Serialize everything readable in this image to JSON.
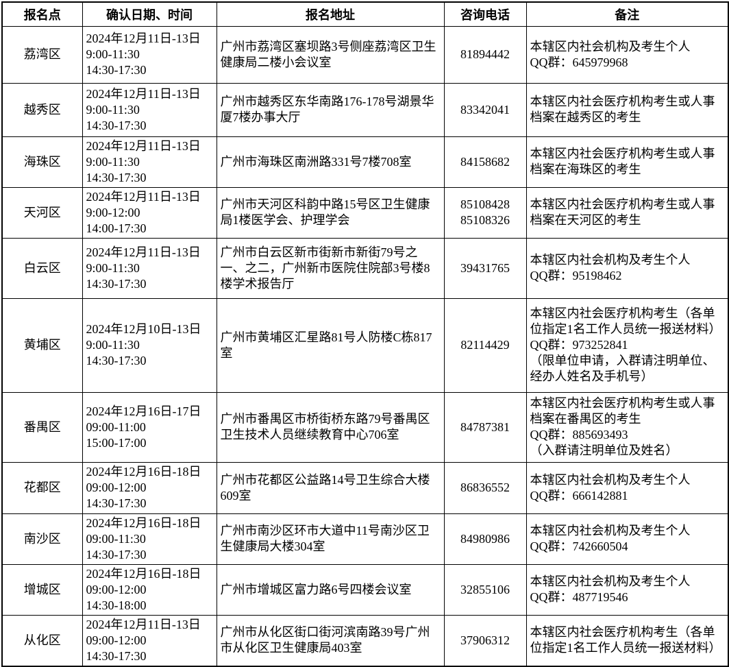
{
  "colors": {
    "background": "#ffffff",
    "text": "#000000",
    "border": "#000000"
  },
  "table": {
    "headers": [
      "报名点",
      "确认日期、时间",
      "报名地址",
      "咨询电话",
      "备注"
    ],
    "rows": [
      {
        "district": "荔湾区",
        "datetime": [
          "2024年12月11日-13日",
          "9:00-11:30",
          "14:30-17:30"
        ],
        "address": [
          "广州市荔湾区塞坝路3号侧座荔湾区卫生健康局二楼小会议室"
        ],
        "phone": [
          "81894442"
        ],
        "remark": [
          "本辖区内社会机构及考生个人",
          "QQ群：645979968"
        ]
      },
      {
        "district": "越秀区",
        "datetime": [
          "2024年12月11日-13日",
          "9:00-11:30",
          "14:30-17:30"
        ],
        "address": [
          "广州市越秀区东华南路176-178号湖景华厦7楼办事大厅"
        ],
        "phone": [
          "83342041"
        ],
        "remark": [
          "本辖区内社会医疗机构考生或人事档案在越秀区的考生"
        ]
      },
      {
        "district": "海珠区",
        "datetime": [
          "2024年12月11日-13日",
          "9:00-11:30",
          "14:30-17:30"
        ],
        "address": [
          "广州市海珠区南洲路331号7楼708室"
        ],
        "phone": [
          "84158682"
        ],
        "remark": [
          "本辖区内社会医疗机构考生或人事档案在海珠区的考生"
        ]
      },
      {
        "district": "天河区",
        "datetime": [
          "2024年12月11日-13日",
          "9:00-12:00",
          "14:00-17:30"
        ],
        "address": [
          "广州市天河区科韵中路15号区卫生健康局1楼医学会、护理学会"
        ],
        "phone": [
          "85108428",
          "85108326"
        ],
        "remark": [
          "本辖区内社会医疗机构考生或人事档案在天河区的考生"
        ]
      },
      {
        "district": "白云区",
        "datetime": [
          "2024年12月11日-13日",
          "9:00-11:30",
          "14:30-17:30"
        ],
        "address": [
          "广州市白云区新市街新市新街79号之一、之二，广州新市医院住院部3号楼8楼学术报告厅"
        ],
        "phone": [
          "39431765"
        ],
        "remark": [
          "本辖区内社会机构及考生个人",
          "QQ群：95198462"
        ]
      },
      {
        "district": "黄埔区",
        "datetime": [
          "2024年12月10日-13日",
          "9:00-11:30",
          "14:30-17:30"
        ],
        "address": [
          "广州市黄埔区汇星路81号人防楼C栋817室"
        ],
        "phone": [
          "82114429"
        ],
        "remark": [
          "本辖区内社会医疗机构考生（各单位指定1名工作人员统一报送材料）",
          "QQ群：973252841",
          "（限单位申请，入群请注明单位、经办人姓名及手机号）"
        ]
      },
      {
        "district": "番禺区",
        "datetime": [
          "2024年12月16日-17日",
          "09:00-11:00",
          "15:00-17:00"
        ],
        "address": [
          "广州市番禺区市桥街桥东路79号番禺区卫生技术人员继续教育中心706室"
        ],
        "phone": [
          "84787381"
        ],
        "remark": [
          "本辖区内社会医疗机构考生或人事档案在番禺区的考生",
          "QQ群：885693493",
          "（入群请注明单位及姓名）"
        ]
      },
      {
        "district": "花都区",
        "datetime": [
          "2024年12月16日-18日",
          "09:00-12:00",
          "14:30-17:30"
        ],
        "address": [
          "广州市花都区公益路14号卫生综合大楼609室"
        ],
        "phone": [
          "86836552"
        ],
        "remark": [
          "本辖区内社会机构及考生个人",
          "QQ群：666142881"
        ]
      },
      {
        "district": "南沙区",
        "datetime": [
          "2024年12月16日-18日",
          "09:00-11:30",
          "14:30-17:30"
        ],
        "address": [
          "广州市南沙区环市大道中11号南沙区卫生健康局大楼304室"
        ],
        "phone": [
          "84980986"
        ],
        "remark": [
          "本辖区内社会机构及考生个人",
          "QQ群：742660504"
        ]
      },
      {
        "district": "增城区",
        "datetime": [
          "2024年12月16日-18日",
          "09:00-12:00",
          "14:30-18:00"
        ],
        "address": [
          "广州市增城区富力路6号四楼会议室"
        ],
        "phone": [
          "32855106"
        ],
        "remark": [
          "本辖区内社会机构及考生个人",
          "QQ群：487719546"
        ]
      },
      {
        "district": "从化区",
        "datetime": [
          "2024年12月11日-13日",
          "09:00-12:00",
          "14:30-17:30"
        ],
        "address": [
          "广州市从化区街口街河滨南路39号广州市从化区卫生健康局403室"
        ],
        "phone": [
          "37906312"
        ],
        "remark": [
          "本辖区内社会医疗机构考生（各单位指定1名工作人员统一报送材料）"
        ]
      }
    ]
  }
}
